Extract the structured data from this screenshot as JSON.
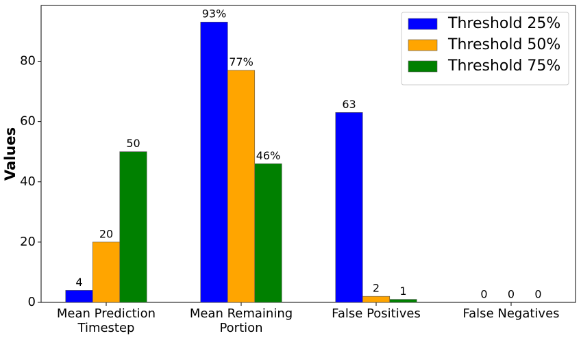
{
  "chart_data": {
    "type": "bar",
    "ylabel": "Values",
    "categories": [
      "Mean Prediction\nTimestep",
      "Mean Remaining\nPortion",
      "False Positives",
      "False Negatives"
    ],
    "series": [
      {
        "name": "Threshold 25%",
        "color": "#0000ff",
        "values": [
          4,
          93,
          63,
          0
        ],
        "value_labels": [
          "4",
          "93%",
          "63",
          "0"
        ]
      },
      {
        "name": "Threshold 50%",
        "color": "#ffa500",
        "values": [
          20,
          77,
          2,
          0
        ],
        "value_labels": [
          "20",
          "77%",
          "2",
          "0"
        ]
      },
      {
        "name": "Threshold 75%",
        "color": "#008000",
        "values": [
          50,
          46,
          1,
          0
        ],
        "value_labels": [
          "50",
          "46%",
          "1",
          "0"
        ]
      }
    ],
    "ylim": [
      0,
      98.5
    ],
    "yticks": [
      0,
      20,
      40,
      60,
      80
    ],
    "legend": "upper right"
  }
}
